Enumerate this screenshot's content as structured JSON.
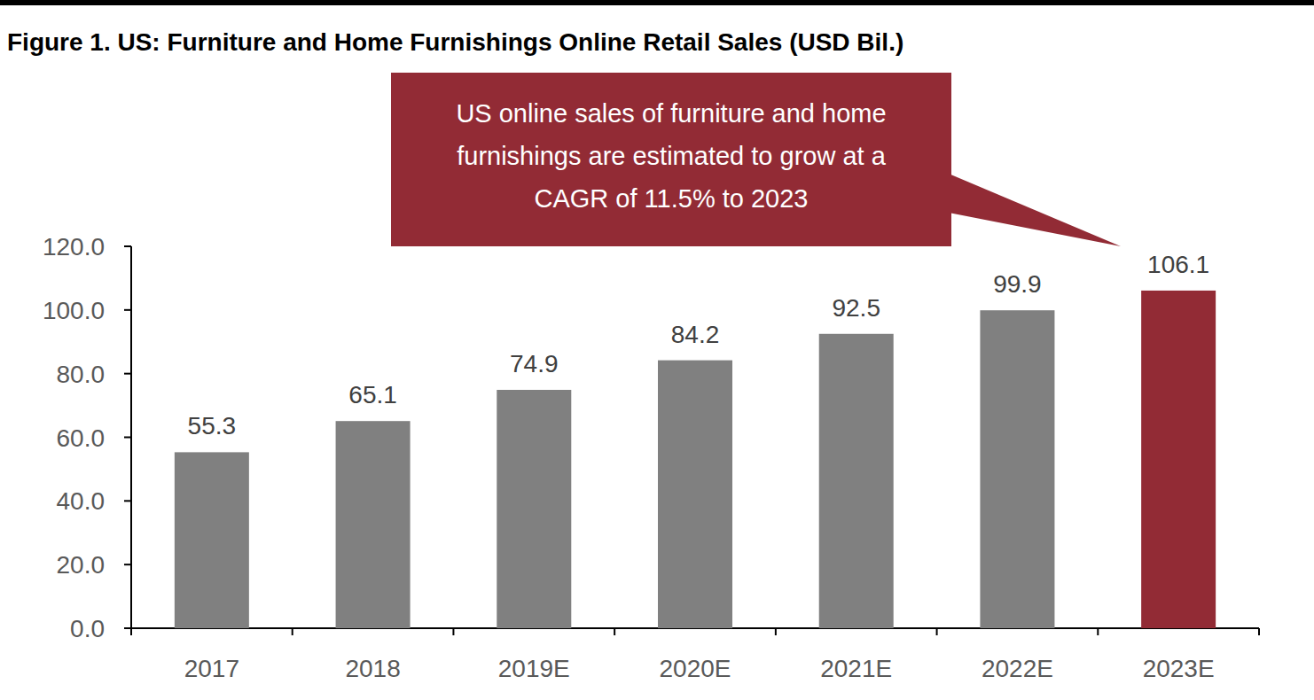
{
  "chart_data": {
    "type": "bar",
    "title": "Figure 1. US: Furniture and Home Furnishings Online Retail Sales (USD Bil.)",
    "annotation": "US online sales of furniture and home furnishings are estimated to grow at a CAGR of 11.5% to 2023",
    "categories": [
      "2017",
      "2018",
      "2019E",
      "2020E",
      "2021E",
      "2022E",
      "2023E"
    ],
    "values": [
      55.3,
      65.1,
      74.9,
      84.2,
      92.5,
      99.9,
      106.1
    ],
    "colors": [
      "#808080",
      "#808080",
      "#808080",
      "#808080",
      "#808080",
      "#808080",
      "#922b35"
    ],
    "ylim": [
      0,
      120
    ],
    "yticks": [
      {
        "value": 0,
        "label": "0.0"
      },
      {
        "value": 20,
        "label": "20.0"
      },
      {
        "value": 40,
        "label": "40.0"
      },
      {
        "value": 60,
        "label": "60.0"
      },
      {
        "value": 80,
        "label": "80.0"
      },
      {
        "value": 100,
        "label": "100.0"
      },
      {
        "value": 120,
        "label": "120.0"
      }
    ],
    "grid": false,
    "data_labels": true
  }
}
